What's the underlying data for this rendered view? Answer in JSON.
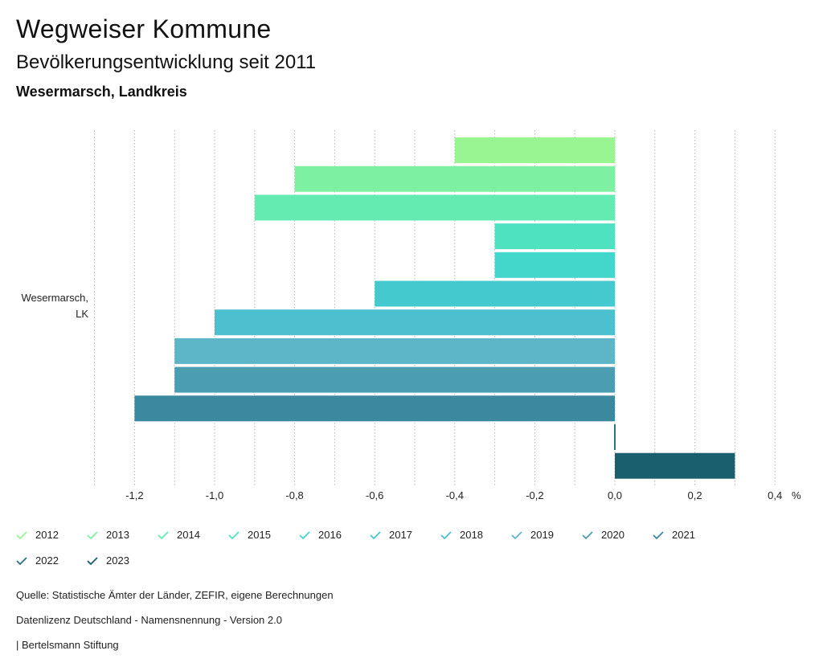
{
  "header": {
    "title": "Wegweiser Kommune",
    "subtitle": "Bevölkerungsentwicklung seit 2011",
    "region": "Wesermarsch, Landkreis"
  },
  "chart_data": {
    "type": "bar",
    "orientation": "horizontal",
    "category_label": [
      "Wesermarsch,",
      "LK"
    ],
    "unit": "%",
    "xlim": [
      -1.3,
      0.45
    ],
    "x_ticks": [
      -1.2,
      -1.0,
      -0.8,
      -0.6,
      -0.4,
      -0.2,
      0.0,
      0.2,
      0.4
    ],
    "x_tick_labels": [
      "-1,2",
      "-1,0",
      "-0,8",
      "-0,6",
      "-0,4",
      "-0,2",
      "0,0",
      "0,2",
      "0,4"
    ],
    "grid": true,
    "legend_position": "bottom",
    "series": [
      {
        "name": "2012",
        "value": -0.4,
        "color": "#98f592"
      },
      {
        "name": "2013",
        "value": -0.8,
        "color": "#7ef0a2"
      },
      {
        "name": "2014",
        "value": -0.9,
        "color": "#64ebb2"
      },
      {
        "name": "2015",
        "value": -0.3,
        "color": "#4ee2c1"
      },
      {
        "name": "2016",
        "value": -0.3,
        "color": "#43d6ca"
      },
      {
        "name": "2017",
        "value": -0.6,
        "color": "#44cace"
      },
      {
        "name": "2018",
        "value": -1.0,
        "color": "#4dc0cf"
      },
      {
        "name": "2019",
        "value": -1.1,
        "color": "#5db5c8"
      },
      {
        "name": "2020",
        "value": -1.1,
        "color": "#4b9db2"
      },
      {
        "name": "2021",
        "value": -1.2,
        "color": "#3a899e"
      },
      {
        "name": "2022",
        "value": 0.0,
        "color": "#2a7384"
      },
      {
        "name": "2023",
        "value": 0.3,
        "color": "#195f6d"
      }
    ]
  },
  "footer": {
    "source": "Quelle: Statistische Ämter der Länder, ZEFIR, eigene Berechnungen",
    "license": "Datenlizenz Deutschland - Namensnennung - Version 2.0",
    "publisher": "| Bertelsmann Stiftung"
  }
}
